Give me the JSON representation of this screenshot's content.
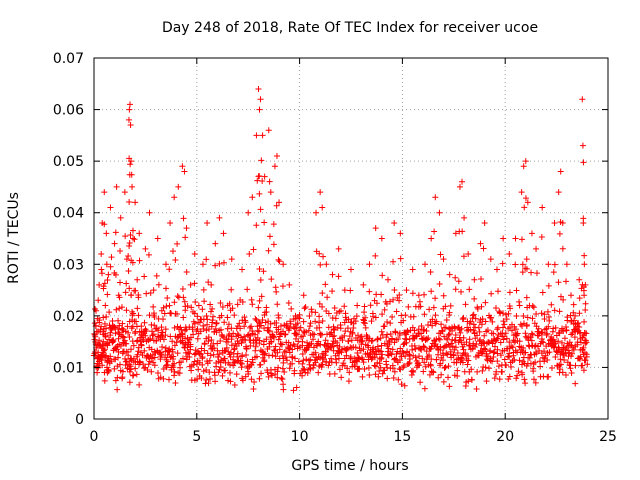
{
  "chart_data": {
    "type": "scatter",
    "title": "Day 248 of 2018, Rate Of TEC Index for receiver ucoe",
    "xlabel": "GPS time / hours",
    "ylabel": "ROTI / TECUs",
    "xlim": [
      0,
      25
    ],
    "ylim": [
      0,
      0.07
    ],
    "xticks": [
      0,
      5,
      10,
      15,
      20,
      25
    ],
    "xtick_labels": [
      "0",
      "5",
      "10",
      "15",
      "20",
      "25"
    ],
    "yticks": [
      0,
      0.01,
      0.02,
      0.03,
      0.04,
      0.05,
      0.06,
      0.07
    ],
    "ytick_labels": [
      "0",
      "0.01",
      "0.02",
      "0.03",
      "0.04",
      "0.05",
      "0.06",
      "0.07"
    ],
    "grid": true,
    "marker": "+",
    "color": "#ff0000",
    "series": [
      {
        "name": "ROTI",
        "points": [
          [
            0.05,
            0.013
          ],
          [
            0.1,
            0.021
          ],
          [
            0.15,
            0.009
          ],
          [
            0.2,
            0.017
          ],
          [
            0.25,
            0.026
          ],
          [
            0.3,
            0.012
          ],
          [
            0.35,
            0.032
          ],
          [
            0.4,
            0.038
          ],
          [
            0.45,
            0.015
          ],
          [
            0.5,
            0.044
          ],
          [
            0.55,
            0.022
          ],
          [
            0.6,
            0.036
          ],
          [
            0.65,
            0.011
          ],
          [
            0.7,
            0.028
          ],
          [
            0.8,
            0.041
          ],
          [
            0.9,
            0.019
          ],
          [
            1.0,
            0.034
          ],
          [
            1.1,
            0.045
          ],
          [
            1.2,
            0.024
          ],
          [
            1.3,
            0.039
          ],
          [
            1.4,
            0.016
          ],
          [
            1.5,
            0.044
          ],
          [
            1.6,
            0.031
          ],
          [
            1.7,
            0.058
          ],
          [
            1.72,
            0.06
          ],
          [
            1.75,
            0.061
          ],
          [
            1.78,
            0.057
          ],
          [
            1.8,
            0.05
          ],
          [
            1.85,
            0.045
          ],
          [
            1.9,
            0.035
          ],
          [
            2.0,
            0.042
          ],
          [
            2.1,
            0.027
          ],
          [
            2.2,
            0.036
          ],
          [
            2.3,
            0.018
          ],
          [
            2.5,
            0.033
          ],
          [
            2.7,
            0.04
          ],
          [
            2.9,
            0.025
          ],
          [
            3.1,
            0.035
          ],
          [
            3.3,
            0.021
          ],
          [
            3.5,
            0.03
          ],
          [
            3.7,
            0.038
          ],
          [
            3.9,
            0.043
          ],
          [
            4.1,
            0.045
          ],
          [
            4.3,
            0.049
          ],
          [
            4.4,
            0.048
          ],
          [
            4.5,
            0.037
          ],
          [
            4.7,
            0.026
          ],
          [
            4.9,
            0.032
          ],
          [
            5.1,
            0.022
          ],
          [
            5.3,
            0.03
          ],
          [
            5.5,
            0.038
          ],
          [
            5.7,
            0.026
          ],
          [
            5.9,
            0.034
          ],
          [
            6.1,
            0.039
          ],
          [
            6.3,
            0.036
          ],
          [
            6.5,
            0.022
          ],
          [
            6.7,
            0.031
          ],
          [
            7.0,
            0.018
          ],
          [
            7.2,
            0.029
          ],
          [
            7.5,
            0.04
          ],
          [
            7.7,
            0.043
          ],
          [
            7.9,
            0.055
          ],
          [
            8.0,
            0.064
          ],
          [
            8.05,
            0.06
          ],
          [
            8.1,
            0.062
          ],
          [
            8.2,
            0.055
          ],
          [
            8.3,
            0.047
          ],
          [
            8.5,
            0.056
          ],
          [
            8.6,
            0.044
          ],
          [
            8.8,
            0.049
          ],
          [
            8.9,
            0.051
          ],
          [
            9.0,
            0.042
          ],
          [
            9.2,
            0.03
          ],
          [
            9.5,
            0.026
          ],
          [
            9.8,
            0.02
          ],
          [
            10.2,
            0.024
          ],
          [
            10.5,
            0.018
          ],
          [
            10.8,
            0.04
          ],
          [
            11.0,
            0.044
          ],
          [
            11.1,
            0.041
          ],
          [
            11.3,
            0.03
          ],
          [
            11.6,
            0.028
          ],
          [
            11.9,
            0.033
          ],
          [
            12.2,
            0.025
          ],
          [
            12.5,
            0.029
          ],
          [
            12.8,
            0.022
          ],
          [
            13.1,
            0.026
          ],
          [
            13.4,
            0.03
          ],
          [
            13.7,
            0.037
          ],
          [
            14.0,
            0.035
          ],
          [
            14.3,
            0.027
          ],
          [
            14.6,
            0.038
          ],
          [
            14.9,
            0.036
          ],
          [
            15.2,
            0.025
          ],
          [
            15.5,
            0.029
          ],
          [
            15.8,
            0.024
          ],
          [
            16.1,
            0.03
          ],
          [
            16.4,
            0.035
          ],
          [
            16.6,
            0.043
          ],
          [
            16.8,
            0.04
          ],
          [
            17.0,
            0.031
          ],
          [
            17.3,
            0.028
          ],
          [
            17.6,
            0.036
          ],
          [
            17.8,
            0.045
          ],
          [
            17.9,
            0.046
          ],
          [
            18.0,
            0.039
          ],
          [
            18.2,
            0.032
          ],
          [
            18.5,
            0.027
          ],
          [
            18.8,
            0.034
          ],
          [
            19.0,
            0.038
          ],
          [
            19.3,
            0.031
          ],
          [
            19.6,
            0.029
          ],
          [
            19.9,
            0.035
          ],
          [
            20.2,
            0.032
          ],
          [
            20.5,
            0.035
          ],
          [
            20.8,
            0.044
          ],
          [
            20.9,
            0.049
          ],
          [
            21.0,
            0.05
          ],
          [
            21.1,
            0.042
          ],
          [
            21.3,
            0.036
          ],
          [
            21.5,
            0.033
          ],
          [
            21.8,
            0.041
          ],
          [
            22.1,
            0.03
          ],
          [
            22.4,
            0.038
          ],
          [
            22.6,
            0.044
          ],
          [
            22.7,
            0.048
          ],
          [
            22.8,
            0.038
          ],
          [
            23.0,
            0.03
          ],
          [
            23.2,
            0.024
          ],
          [
            23.4,
            0.02
          ],
          [
            23.6,
            0.027
          ],
          [
            23.75,
            0.062
          ],
          [
            23.78,
            0.053
          ],
          [
            23.8,
            0.038
          ],
          [
            23.85,
            0.03
          ],
          [
            23.9,
            0.026
          ]
        ],
        "base": {
          "start": 0.0,
          "end": 23.95,
          "step": 0.06,
          "low": 0.004,
          "high": 0.024,
          "center": 0.0125
        }
      }
    ]
  }
}
